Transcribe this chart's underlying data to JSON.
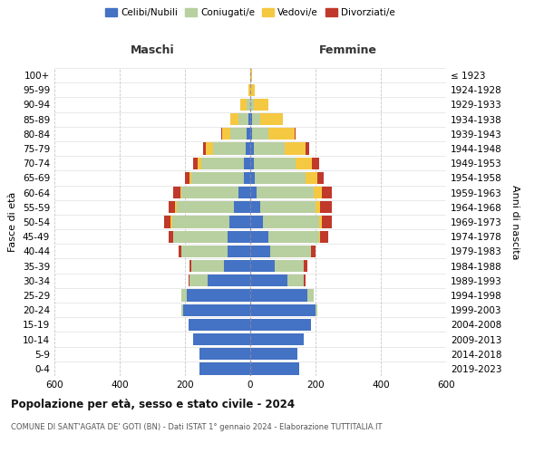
{
  "age_groups": [
    "0-4",
    "5-9",
    "10-14",
    "15-19",
    "20-24",
    "25-29",
    "30-34",
    "35-39",
    "40-44",
    "45-49",
    "50-54",
    "55-59",
    "60-64",
    "65-69",
    "70-74",
    "75-79",
    "80-84",
    "85-89",
    "90-94",
    "95-99",
    "100+"
  ],
  "birth_years": [
    "2019-2023",
    "2014-2018",
    "2009-2013",
    "2004-2008",
    "1999-2003",
    "1994-1998",
    "1989-1993",
    "1984-1988",
    "1979-1983",
    "1974-1978",
    "1969-1973",
    "1964-1968",
    "1959-1963",
    "1954-1958",
    "1949-1953",
    "1944-1948",
    "1939-1943",
    "1934-1938",
    "1929-1933",
    "1924-1928",
    "≤ 1923"
  ],
  "colors": {
    "celibe": "#4472C4",
    "coniugato": "#b8cfa0",
    "vedovo": "#f5c842",
    "divorziato": "#c0392b"
  },
  "males": {
    "celibe": [
      155,
      155,
      175,
      190,
      205,
      195,
      130,
      80,
      70,
      70,
      65,
      50,
      35,
      20,
      20,
      15,
      10,
      5,
      0,
      0,
      0
    ],
    "coniugato": [
      0,
      0,
      0,
      0,
      5,
      15,
      55,
      100,
      140,
      165,
      175,
      175,
      175,
      160,
      130,
      100,
      50,
      30,
      10,
      0,
      0
    ],
    "vedovo": [
      0,
      0,
      0,
      0,
      0,
      0,
      0,
      0,
      0,
      0,
      5,
      5,
      5,
      5,
      10,
      20,
      25,
      25,
      20,
      5,
      0
    ],
    "divorziato": [
      0,
      0,
      0,
      0,
      0,
      0,
      5,
      5,
      10,
      15,
      20,
      20,
      20,
      15,
      15,
      10,
      5,
      0,
      0,
      0,
      0
    ]
  },
  "females": {
    "nubile": [
      150,
      145,
      165,
      185,
      200,
      175,
      115,
      75,
      60,
      55,
      40,
      30,
      20,
      15,
      10,
      10,
      5,
      5,
      0,
      0,
      0
    ],
    "coniugata": [
      0,
      0,
      0,
      0,
      5,
      20,
      50,
      90,
      125,
      155,
      170,
      170,
      175,
      155,
      130,
      95,
      50,
      25,
      10,
      0,
      0
    ],
    "vedova": [
      0,
      0,
      0,
      0,
      0,
      0,
      0,
      0,
      0,
      5,
      10,
      15,
      25,
      35,
      50,
      65,
      80,
      70,
      45,
      15,
      5
    ],
    "divorziata": [
      0,
      0,
      0,
      0,
      0,
      0,
      5,
      10,
      15,
      25,
      30,
      35,
      30,
      20,
      20,
      10,
      5,
      0,
      0,
      0,
      0
    ]
  },
  "xlim": 600,
  "xticks": [
    -600,
    -400,
    -200,
    0,
    200,
    400,
    600
  ],
  "xticklabels": [
    "600",
    "400",
    "200",
    "0",
    "200",
    "400",
    "600"
  ],
  "title": "Popolazione per età, sesso e stato civile - 2024",
  "subtitle": "COMUNE DI SANT'AGATA DE' GOTI (BN) - Dati ISTAT 1° gennaio 2024 - Elaborazione TUTTITALIA.IT",
  "ylabel_left": "Fasce di età",
  "ylabel_right": "Anni di nascita",
  "header_maschi": "Maschi",
  "header_femmine": "Femmine",
  "legend_labels": [
    "Celibi/Nubili",
    "Coniugati/e",
    "Vedovi/e",
    "Divorziati/e"
  ],
  "bg_color": "#ffffff",
  "grid_color": "#cccccc"
}
